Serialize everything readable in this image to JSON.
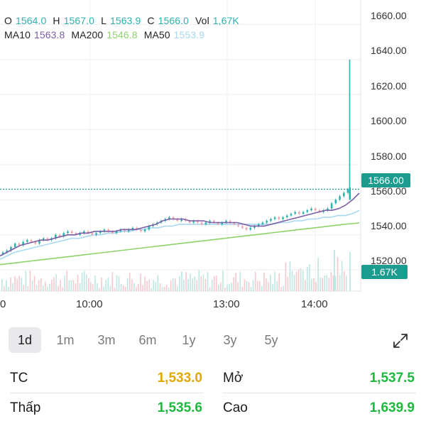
{
  "ohlc": {
    "o_label": "O",
    "o_value": "1564.0",
    "h_label": "H",
    "h_value": "1567.0",
    "l_label": "L",
    "l_value": "1563.9",
    "c_label": "C",
    "c_value": "1566.0",
    "vol_label": "Vol",
    "vol_value": "1,67K"
  },
  "ma": {
    "ma10_label": "MA10",
    "ma10_value": "1563.8",
    "ma200_label": "MA200",
    "ma200_value": "1546.8",
    "ma50_label": "MA50",
    "ma50_value": "1553.9"
  },
  "colors": {
    "up": "#2bb3ad",
    "down": "#f0a0a8",
    "ma10": "#7b5ea7",
    "ma200": "#8fd36a",
    "ma50": "#a9d8f0",
    "accent": "#1c9c8f",
    "tc_value": "#e0a800",
    "green_value": "#1db83d"
  },
  "chart_data": {
    "type": "candlestick",
    "y_tick_labels": [
      "1660.00",
      "1640.00",
      "1620.00",
      "1600.00",
      "1580.00",
      "1560.00",
      "1540.00",
      "1520.00"
    ],
    "y_ticks": [
      1660,
      1640,
      1620,
      1600,
      1580,
      1560,
      1540,
      1520
    ],
    "ylim": [
      1512,
      1665
    ],
    "x_tick_labels": [
      "0",
      "10:00",
      "13:00",
      "14:00"
    ],
    "current_price_label": "1566.00",
    "current_price": 1566.0,
    "volume_label": "1.67K",
    "spike_high": 1639.9,
    "price_path": [
      1530,
      1531,
      1533,
      1535,
      1534,
      1536,
      1537,
      1536,
      1535,
      1537,
      1538,
      1537,
      1538,
      1540,
      1539,
      1541,
      1542,
      1541,
      1540,
      1541,
      1542,
      1541,
      1540,
      1541,
      1542,
      1543,
      1542,
      1541,
      1542,
      1543,
      1542,
      1543,
      1544,
      1543,
      1542,
      1543,
      1545,
      1546,
      1547,
      1548,
      1549,
      1550,
      1549,
      1548,
      1549,
      1548,
      1547,
      1548,
      1547,
      1546,
      1547,
      1548,
      1547,
      1546,
      1547,
      1548,
      1547,
      1546,
      1545,
      1544,
      1543,
      1544,
      1545,
      1546,
      1547,
      1548,
      1549,
      1550,
      1549,
      1550,
      1551,
      1552,
      1553,
      1552,
      1553,
      1554,
      1555,
      1554,
      1553,
      1554,
      1555,
      1558,
      1560,
      1562,
      1564,
      1566
    ],
    "ma10": [
      1528,
      1530,
      1532,
      1534,
      1535,
      1536,
      1537,
      1537,
      1538,
      1539,
      1540,
      1540,
      1541,
      1541,
      1542,
      1542,
      1542,
      1542,
      1543,
      1543,
      1543,
      1544,
      1545,
      1546,
      1548,
      1549,
      1549,
      1549,
      1548,
      1548,
      1548,
      1547,
      1547,
      1547,
      1547,
      1547,
      1546,
      1545,
      1545,
      1545,
      1546,
      1547,
      1548,
      1549,
      1550,
      1551,
      1552,
      1553,
      1554,
      1554,
      1555,
      1557,
      1560,
      1563.8
    ],
    "ma50": [
      1526,
      1528,
      1530,
      1531,
      1532,
      1533,
      1534,
      1535,
      1536,
      1537,
      1538,
      1538,
      1539,
      1540,
      1540,
      1541,
      1541,
      1542,
      1542,
      1543,
      1543,
      1544,
      1544,
      1545,
      1545,
      1546,
      1546,
      1546,
      1546,
      1546,
      1546,
      1546,
      1546,
      1546,
      1546,
      1546,
      1546,
      1546,
      1546,
      1547,
      1547,
      1548,
      1548,
      1549,
      1549,
      1550,
      1550,
      1551,
      1551,
      1552,
      1553.9
    ],
    "ma200": [
      1523,
      1524,
      1525,
      1526,
      1527,
      1528,
      1529,
      1530,
      1531,
      1532,
      1533,
      1534,
      1535,
      1536,
      1537,
      1538,
      1539,
      1540,
      1541,
      1542,
      1543,
      1544,
      1545,
      1546,
      1546.8
    ]
  },
  "ranges": {
    "items": [
      "1d",
      "1m",
      "3m",
      "6m",
      "1y",
      "3y",
      "5y"
    ],
    "active": "1d"
  },
  "stats": {
    "tc_label": "TC",
    "tc_value": "1,533.0",
    "mo_label": "Mở",
    "mo_value": "1,537.5",
    "thap_label": "Thấp",
    "thap_value": "1,535.6",
    "cao_label": "Cao",
    "cao_value": "1,639.9"
  }
}
